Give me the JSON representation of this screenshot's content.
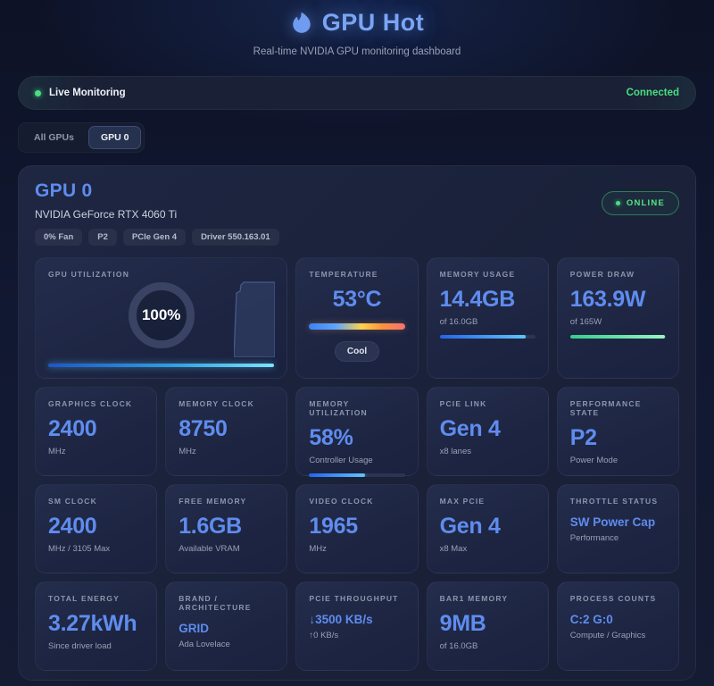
{
  "header": {
    "title": "GPU Hot",
    "subtitle": "Real-time NVIDIA GPU monitoring dashboard"
  },
  "status_bar": {
    "label": "Live Monitoring",
    "connection": "Connected"
  },
  "tabs": [
    {
      "label": "All GPUs",
      "active": false
    },
    {
      "label": "GPU 0",
      "active": true
    }
  ],
  "gpu": {
    "name": "GPU 0",
    "model": "NVIDIA GeForce RTX 4060 Ti",
    "chips": [
      "0% Fan",
      "P2",
      "PCIe Gen 4",
      "Driver 550.163.01"
    ],
    "online_label": "ONLINE"
  },
  "cards": {
    "gpu_utilization": {
      "label": "GPU UTILIZATION",
      "value": "100%",
      "percent": 100
    },
    "temperature": {
      "label": "TEMPERATURE",
      "value": "53°C",
      "status": "Cool"
    },
    "memory_usage": {
      "label": "MEMORY USAGE",
      "value": "14.4GB",
      "sub": "of 16.0GB",
      "percent": 90
    },
    "power_draw": {
      "label": "POWER DRAW",
      "value": "163.9W",
      "sub": "of 165W",
      "percent": 99
    },
    "graphics_clock": {
      "label": "GRAPHICS CLOCK",
      "value": "2400",
      "sub": "MHz"
    },
    "memory_clock": {
      "label": "MEMORY CLOCK",
      "value": "8750",
      "sub": "MHz"
    },
    "memory_utilization": {
      "label": "MEMORY UTILIZATION",
      "value": "58%",
      "sub": "Controller Usage",
      "percent": 58
    },
    "pcie_link": {
      "label": "PCIE LINK",
      "value": "Gen 4",
      "sub": "x8 lanes"
    },
    "performance_state": {
      "label": "PERFORMANCE STATE",
      "value": "P2",
      "sub": "Power Mode"
    },
    "sm_clock": {
      "label": "SM CLOCK",
      "value": "2400",
      "sub": "MHz / 3105 Max"
    },
    "free_memory": {
      "label": "FREE MEMORY",
      "value": "1.6GB",
      "sub": "Available VRAM"
    },
    "video_clock": {
      "label": "VIDEO CLOCK",
      "value": "1965",
      "sub": "MHz"
    },
    "max_pcie": {
      "label": "MAX PCIE",
      "value": "Gen 4",
      "sub": "x8 Max"
    },
    "throttle_status": {
      "label": "THROTTLE STATUS",
      "value": "SW Power Cap",
      "sub": "Performance"
    },
    "total_energy": {
      "label": "TOTAL ENERGY",
      "value": "3.27kWh",
      "sub": "Since driver load"
    },
    "brand_architecture": {
      "label": "BRAND / ARCHITECTURE",
      "value": "GRID",
      "sub": "Ada Lovelace"
    },
    "pcie_throughput": {
      "label": "PCIE THROUGHPUT",
      "value": "↓3500 KB/s",
      "sub": "↑0 KB/s"
    },
    "bar1_memory": {
      "label": "BAR1 MEMORY",
      "value": "9MB",
      "sub": "of 16.0GB"
    },
    "process_counts": {
      "label": "PROCESS COUNTS",
      "value": "C:2 G:0",
      "sub": "Compute / Graphics"
    }
  },
  "colors": {
    "accent_blue": "#5f8cee",
    "status_green": "#4ade80",
    "background": "#0e1326"
  }
}
